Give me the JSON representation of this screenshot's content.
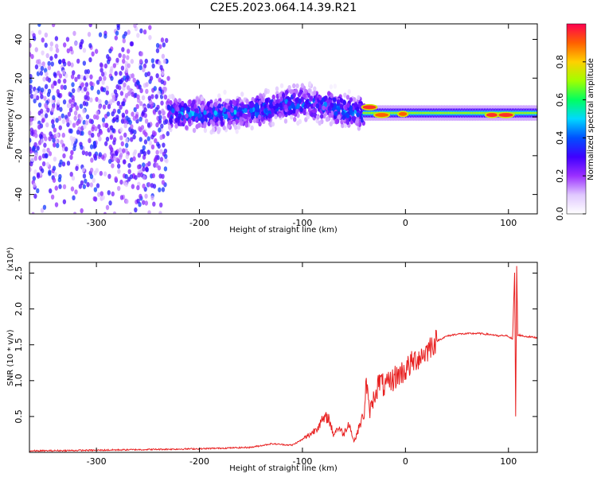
{
  "title": "C2E5.2023.064.14.39.R21",
  "colors": {
    "snr_line": "#e82020",
    "colormap": [
      "#ffffff",
      "#e0c8ff",
      "#9b30ff",
      "#3f00ff",
      "#0050ff",
      "#00d8ff",
      "#00ff60",
      "#a0ff00",
      "#ffd000",
      "#ff6000",
      "#ff0050"
    ]
  },
  "chart_data": [
    {
      "type": "heatmap",
      "xlabel": "Height of straight line (km)",
      "ylabel": "Frequency (Hz)",
      "xlim": [
        -365,
        128
      ],
      "ylim": [
        -50,
        48
      ],
      "xticks": [
        -300,
        -200,
        -100,
        0,
        100
      ],
      "yticks": [
        -40,
        -20,
        0,
        20,
        40
      ],
      "grid": false,
      "colorbar": {
        "label": "Normalized spectral amplitude",
        "range": [
          0,
          1
        ],
        "ticks": [
          0.0,
          0.2,
          0.4,
          0.6,
          0.8
        ]
      },
      "features": [
        {
          "segment": "scattered noise",
          "x": [
            -365,
            -230
          ],
          "freq_center": 0,
          "freq_spread": 48,
          "amplitude": 0.15
        },
        {
          "segment": "broad signal",
          "x": [
            -230,
            -40
          ],
          "freq_center": 0,
          "freq_spread": 12,
          "amplitude": 0.4
        },
        {
          "segment": "narrow tone",
          "x": [
            -40,
            128
          ],
          "freq_center": 2,
          "freq_spread": 3,
          "amplitude": 0.7
        },
        {
          "segment": "peak",
          "x": [
            -40,
            -30
          ],
          "freq": 5,
          "amplitude": 0.95
        },
        {
          "segment": "peak",
          "x": [
            -28,
            -18
          ],
          "freq": 1,
          "amplitude": 0.9
        },
        {
          "segment": "peak",
          "x": [
            -5,
            0
          ],
          "freq": 1.5,
          "amplitude": 0.9
        },
        {
          "segment": "peak",
          "x": [
            80,
            88
          ],
          "freq": 1,
          "amplitude": 0.95
        },
        {
          "segment": "peak",
          "x": [
            92,
            103
          ],
          "freq": 1,
          "amplitude": 0.95
        }
      ]
    },
    {
      "type": "line",
      "xlabel": "Height of straight line (km)",
      "ylabel": "SNR (10 * v/v)",
      "y_scale_label": "(x10⁴)",
      "xlim": [
        -365,
        128
      ],
      "ylim": [
        0,
        2.65
      ],
      "xticks": [
        -300,
        -200,
        -100,
        0,
        100
      ],
      "yticks": [
        0.5,
        1.0,
        1.5,
        2.0,
        2.5
      ],
      "grid": false,
      "series": [
        {
          "x": [
            -365,
            -300,
            -250,
            -200,
            -150,
            -130,
            -110,
            -100,
            -90,
            -80,
            -75,
            -70,
            -65,
            -60,
            -55,
            -50,
            -45,
            -40,
            -38,
            -35,
            -30,
            -25,
            -20,
            -10,
            0,
            10,
            20,
            25,
            30,
            40,
            50,
            70,
            85,
            90,
            95,
            100,
            104,
            106,
            107,
            108,
            109,
            110,
            115,
            128
          ],
          "y": [
            0.02,
            0.03,
            0.04,
            0.05,
            0.07,
            0.12,
            0.1,
            0.18,
            0.28,
            0.45,
            0.5,
            0.25,
            0.35,
            0.25,
            0.42,
            0.15,
            0.35,
            0.55,
            1.0,
            0.55,
            0.8,
            1.0,
            0.9,
            1.05,
            1.15,
            1.3,
            1.4,
            1.5,
            1.55,
            1.62,
            1.65,
            1.66,
            1.64,
            1.62,
            1.63,
            1.62,
            1.58,
            2.5,
            0.5,
            2.6,
            1.62,
            1.64,
            1.62,
            1.6
          ]
        }
      ]
    }
  ]
}
